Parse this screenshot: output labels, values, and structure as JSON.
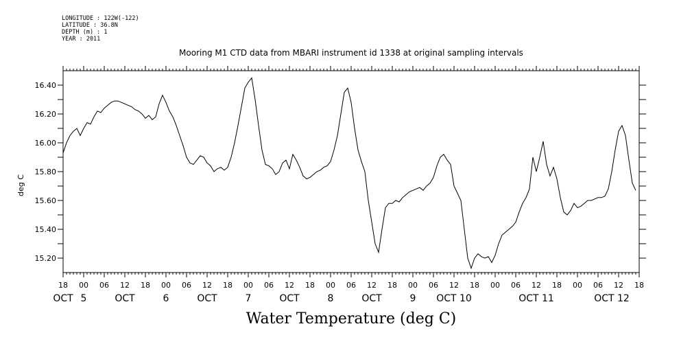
{
  "meta": {
    "longitude": "LONGITUDE : 122W(-122)",
    "latitude": "LATITUDE : 36.8N",
    "depth": "DEPTH (m) : 1",
    "year": "YEAR : 2011"
  },
  "chart_data": {
    "type": "line",
    "title": "Mooring M1 CTD data from MBARI instrument id 1338 at original sampling intervals",
    "xlabel": "Water Temperature (deg C)",
    "ylabel": "deg C",
    "ylim": [
      15.1,
      16.5
    ],
    "yticks": [
      15.2,
      15.4,
      15.6,
      15.8,
      16.0,
      16.2,
      16.4
    ],
    "ytick_labels": [
      "15.20",
      "15.40",
      "15.60",
      "15.80",
      "16.00",
      "16.20",
      "16.40"
    ],
    "xlim_hours": [
      -6,
      162
    ],
    "hour_tick_labels": [
      "18",
      "00",
      "06",
      "12",
      "18",
      "00",
      "06",
      "12",
      "18",
      "00",
      "06",
      "12",
      "18",
      "00",
      "06",
      "12",
      "18",
      "00",
      "06",
      "12",
      "18",
      "00",
      "06",
      "12",
      "18",
      "00",
      "06",
      "12",
      "18"
    ],
    "day_labels": [
      {
        "hour": -6,
        "text": "OCT"
      },
      {
        "hour": 0,
        "text": "5"
      },
      {
        "hour": 12,
        "text": "OCT"
      },
      {
        "hour": 24,
        "text": "6"
      },
      {
        "hour": 36,
        "text": "OCT"
      },
      {
        "hour": 48,
        "text": "7"
      },
      {
        "hour": 60,
        "text": "OCT"
      },
      {
        "hour": 72,
        "text": "8"
      },
      {
        "hour": 84,
        "text": "OCT"
      },
      {
        "hour": 96,
        "text": "9"
      },
      {
        "hour": 108,
        "text": "OCT 10"
      },
      {
        "hour": 132,
        "text": "OCT 11"
      },
      {
        "hour": 154,
        "text": "OCT 12"
      }
    ],
    "series": [
      {
        "points": [
          [
            -6,
            15.93
          ],
          [
            -5,
            16.0
          ],
          [
            -4,
            16.05
          ],
          [
            -3,
            16.08
          ],
          [
            -2,
            16.1
          ],
          [
            -1,
            16.05
          ],
          [
            0,
            16.1
          ],
          [
            1,
            16.14
          ],
          [
            2,
            16.13
          ],
          [
            3,
            16.18
          ],
          [
            4,
            16.22
          ],
          [
            5,
            16.21
          ],
          [
            6,
            16.24
          ],
          [
            7,
            16.26
          ],
          [
            8,
            16.28
          ],
          [
            9,
            16.29
          ],
          [
            10,
            16.29
          ],
          [
            11,
            16.28
          ],
          [
            12,
            16.27
          ],
          [
            13,
            16.26
          ],
          [
            14,
            16.25
          ],
          [
            15,
            16.23
          ],
          [
            16,
            16.22
          ],
          [
            17,
            16.2
          ],
          [
            18,
            16.17
          ],
          [
            19,
            16.19
          ],
          [
            20,
            16.16
          ],
          [
            21,
            16.18
          ],
          [
            22,
            16.27
          ],
          [
            23,
            16.33
          ],
          [
            24,
            16.28
          ],
          [
            25,
            16.22
          ],
          [
            26,
            16.18
          ],
          [
            27,
            16.12
          ],
          [
            28,
            16.05
          ],
          [
            29,
            15.98
          ],
          [
            30,
            15.9
          ],
          [
            31,
            15.86
          ],
          [
            32,
            15.85
          ],
          [
            33,
            15.88
          ],
          [
            34,
            15.91
          ],
          [
            35,
            15.9
          ],
          [
            36,
            15.86
          ],
          [
            37,
            15.84
          ],
          [
            38,
            15.8
          ],
          [
            39,
            15.82
          ],
          [
            40,
            15.83
          ],
          [
            41,
            15.81
          ],
          [
            42,
            15.83
          ],
          [
            43,
            15.9
          ],
          [
            44,
            16.0
          ],
          [
            45,
            16.12
          ],
          [
            46,
            16.25
          ],
          [
            47,
            16.38
          ],
          [
            48,
            16.42
          ],
          [
            49,
            16.45
          ],
          [
            50,
            16.3
          ],
          [
            51,
            16.12
          ],
          [
            52,
            15.95
          ],
          [
            53,
            15.85
          ],
          [
            54,
            15.84
          ],
          [
            55,
            15.82
          ],
          [
            56,
            15.78
          ],
          [
            57,
            15.8
          ],
          [
            58,
            15.86
          ],
          [
            59,
            15.88
          ],
          [
            60,
            15.82
          ],
          [
            61,
            15.92
          ],
          [
            62,
            15.88
          ],
          [
            63,
            15.83
          ],
          [
            64,
            15.77
          ],
          [
            65,
            15.75
          ],
          [
            66,
            15.76
          ],
          [
            67,
            15.78
          ],
          [
            68,
            15.8
          ],
          [
            69,
            15.81
          ],
          [
            70,
            15.83
          ],
          [
            71,
            15.84
          ],
          [
            72,
            15.87
          ],
          [
            73,
            15.95
          ],
          [
            74,
            16.05
          ],
          [
            75,
            16.2
          ],
          [
            76,
            16.35
          ],
          [
            77,
            16.38
          ],
          [
            78,
            16.28
          ],
          [
            79,
            16.1
          ],
          [
            80,
            15.95
          ],
          [
            81,
            15.87
          ],
          [
            82,
            15.8
          ],
          [
            83,
            15.6
          ],
          [
            84,
            15.45
          ],
          [
            85,
            15.3
          ],
          [
            86,
            15.24
          ],
          [
            87,
            15.4
          ],
          [
            88,
            15.55
          ],
          [
            89,
            15.58
          ],
          [
            90,
            15.58
          ],
          [
            91,
            15.6
          ],
          [
            92,
            15.59
          ],
          [
            93,
            15.62
          ],
          [
            94,
            15.64
          ],
          [
            95,
            15.66
          ],
          [
            96,
            15.67
          ],
          [
            97,
            15.68
          ],
          [
            98,
            15.69
          ],
          [
            99,
            15.67
          ],
          [
            100,
            15.7
          ],
          [
            101,
            15.72
          ],
          [
            102,
            15.76
          ],
          [
            103,
            15.84
          ],
          [
            104,
            15.9
          ],
          [
            105,
            15.92
          ],
          [
            106,
            15.88
          ],
          [
            107,
            15.85
          ],
          [
            108,
            15.7
          ],
          [
            109,
            15.65
          ],
          [
            110,
            15.6
          ],
          [
            111,
            15.4
          ],
          [
            112,
            15.2
          ],
          [
            113,
            15.13
          ],
          [
            114,
            15.2
          ],
          [
            115,
            15.23
          ],
          [
            116,
            15.21
          ],
          [
            117,
            15.2
          ],
          [
            118,
            15.21
          ],
          [
            119,
            15.17
          ],
          [
            120,
            15.22
          ],
          [
            121,
            15.3
          ],
          [
            122,
            15.36
          ],
          [
            123,
            15.38
          ],
          [
            124,
            15.4
          ],
          [
            125,
            15.42
          ],
          [
            126,
            15.45
          ],
          [
            127,
            15.52
          ],
          [
            128,
            15.58
          ],
          [
            129,
            15.62
          ],
          [
            130,
            15.68
          ],
          [
            131,
            15.9
          ],
          [
            132,
            15.8
          ],
          [
            133,
            15.9
          ],
          [
            134,
            16.01
          ],
          [
            135,
            15.85
          ],
          [
            136,
            15.77
          ],
          [
            137,
            15.83
          ],
          [
            138,
            15.75
          ],
          [
            139,
            15.62
          ],
          [
            140,
            15.52
          ],
          [
            141,
            15.5
          ],
          [
            142,
            15.53
          ],
          [
            143,
            15.58
          ],
          [
            144,
            15.55
          ],
          [
            145,
            15.56
          ],
          [
            146,
            15.58
          ],
          [
            147,
            15.6
          ],
          [
            148,
            15.6
          ],
          [
            149,
            15.61
          ],
          [
            150,
            15.62
          ],
          [
            151,
            15.62
          ],
          [
            152,
            15.63
          ],
          [
            153,
            15.68
          ],
          [
            154,
            15.8
          ],
          [
            155,
            15.95
          ],
          [
            156,
            16.08
          ],
          [
            157,
            16.12
          ],
          [
            158,
            16.05
          ],
          [
            159,
            15.88
          ],
          [
            160,
            15.72
          ],
          [
            161,
            15.67
          ]
        ]
      }
    ]
  }
}
